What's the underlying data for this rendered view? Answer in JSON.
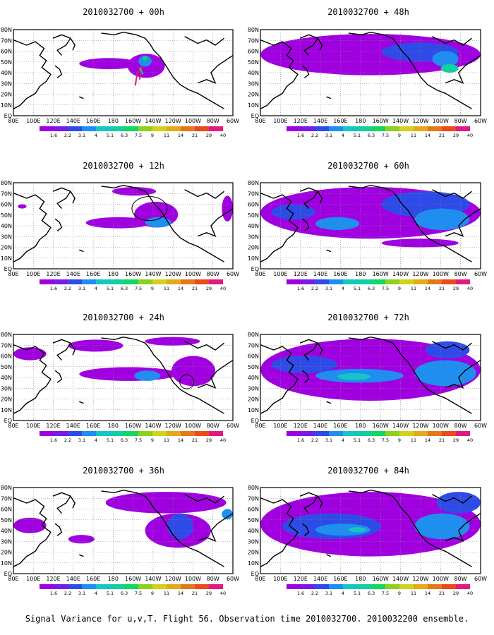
{
  "colorbar": {
    "labels": [
      "1.6",
      "2.2",
      "3.1",
      "4",
      "5.1",
      "6.3",
      "7.5",
      "9",
      "11",
      "14",
      "21",
      "29",
      "40"
    ],
    "colors": [
      "#a000e0",
      "#7a1ae8",
      "#2e4be8",
      "#1e8ef0",
      "#16c6c6",
      "#10cfa0",
      "#12d860",
      "#8cd21c",
      "#d2d21c",
      "#e6a91c",
      "#e6781c",
      "#ea4a1c",
      "#e01a80"
    ]
  },
  "map": {
    "lat_labels": [
      "80N",
      "70N",
      "60N",
      "50N",
      "40N",
      "30N",
      "20N",
      "10N",
      "EQ"
    ],
    "lon_labels": [
      "80E",
      "100E",
      "120E",
      "140E",
      "160E",
      "180",
      "160W",
      "140W",
      "120W",
      "100W",
      "80W",
      "60W"
    ]
  },
  "panels": [
    {
      "title": "2010032700 + 00h",
      "level": 1
    },
    {
      "title": "2010032700 + 12h",
      "level": 2
    },
    {
      "title": "2010032700 + 24h",
      "level": 3
    },
    {
      "title": "2010032700 + 36h",
      "level": 4
    },
    {
      "title": "2010032700 + 48h",
      "level": 5
    },
    {
      "title": "2010032700 + 60h",
      "level": 6
    },
    {
      "title": "2010032700 + 72h",
      "level": 7
    },
    {
      "title": "2010032700 + 84h",
      "level": 8
    }
  ],
  "caption": "Signal Variance for u,v,T. Flight 56. Observation time 2010032700. 2010032200 ensemble."
}
